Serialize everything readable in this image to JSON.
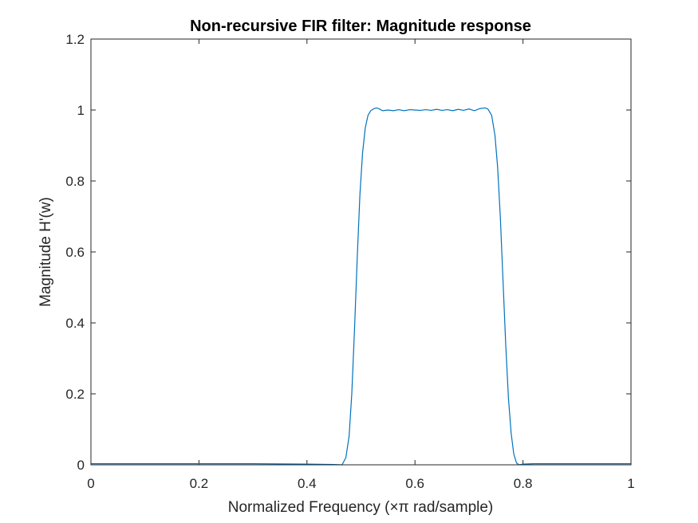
{
  "chart_data": {
    "type": "line",
    "title": "Non-recursive FIR filter: Magnitude response",
    "xlabel": "Normalized Frequency (×π rad/sample)",
    "ylabel": "Magnitude H'(w)",
    "xlim": [
      0,
      1
    ],
    "ylim": [
      0,
      1.2
    ],
    "x_ticks": [
      0,
      0.2,
      0.4,
      0.6,
      0.8,
      1
    ],
    "x_tick_labels": [
      "0",
      "0.2",
      "0.4",
      "0.6",
      "0.8",
      "1"
    ],
    "y_ticks": [
      0,
      0.2,
      0.4,
      0.6,
      0.8,
      1,
      1.2
    ],
    "y_tick_labels": [
      "0",
      "0.2",
      "0.4",
      "0.6",
      "0.8",
      "1",
      "1.2"
    ],
    "grid": false,
    "line_color": "#0072BD",
    "series": [
      {
        "x": [
          0,
          0.1,
          0.2,
          0.3,
          0.4,
          0.45,
          0.465,
          0.472,
          0.478,
          0.483,
          0.488,
          0.493,
          0.498,
          0.503,
          0.508,
          0.513,
          0.518,
          0.523,
          0.528,
          0.533,
          0.54,
          0.55,
          0.56,
          0.57,
          0.58,
          0.59,
          0.6,
          0.61,
          0.62,
          0.63,
          0.64,
          0.65,
          0.66,
          0.67,
          0.68,
          0.69,
          0.7,
          0.71,
          0.72,
          0.73,
          0.735,
          0.742,
          0.748,
          0.753,
          0.758,
          0.763,
          0.768,
          0.773,
          0.778,
          0.783,
          0.788,
          0.793,
          0.8,
          0.82,
          0.85,
          0.9,
          1.0
        ],
        "y": [
          0.003,
          0.003,
          0.003,
          0.003,
          0.002,
          0.001,
          0.0,
          0.02,
          0.08,
          0.2,
          0.38,
          0.58,
          0.76,
          0.88,
          0.95,
          0.985,
          0.998,
          1.003,
          1.006,
          1.004,
          0.998,
          1.0,
          0.998,
          1.001,
          0.998,
          1.001,
          1.0,
          0.999,
          1.001,
          0.999,
          1.002,
          0.999,
          1.001,
          0.998,
          1.002,
          0.999,
          1.003,
          0.998,
          1.004,
          1.006,
          1.003,
          0.985,
          0.93,
          0.84,
          0.7,
          0.52,
          0.34,
          0.19,
          0.09,
          0.03,
          0.005,
          0.0,
          0.002,
          0.003,
          0.003,
          0.003,
          0.003
        ]
      }
    ]
  }
}
